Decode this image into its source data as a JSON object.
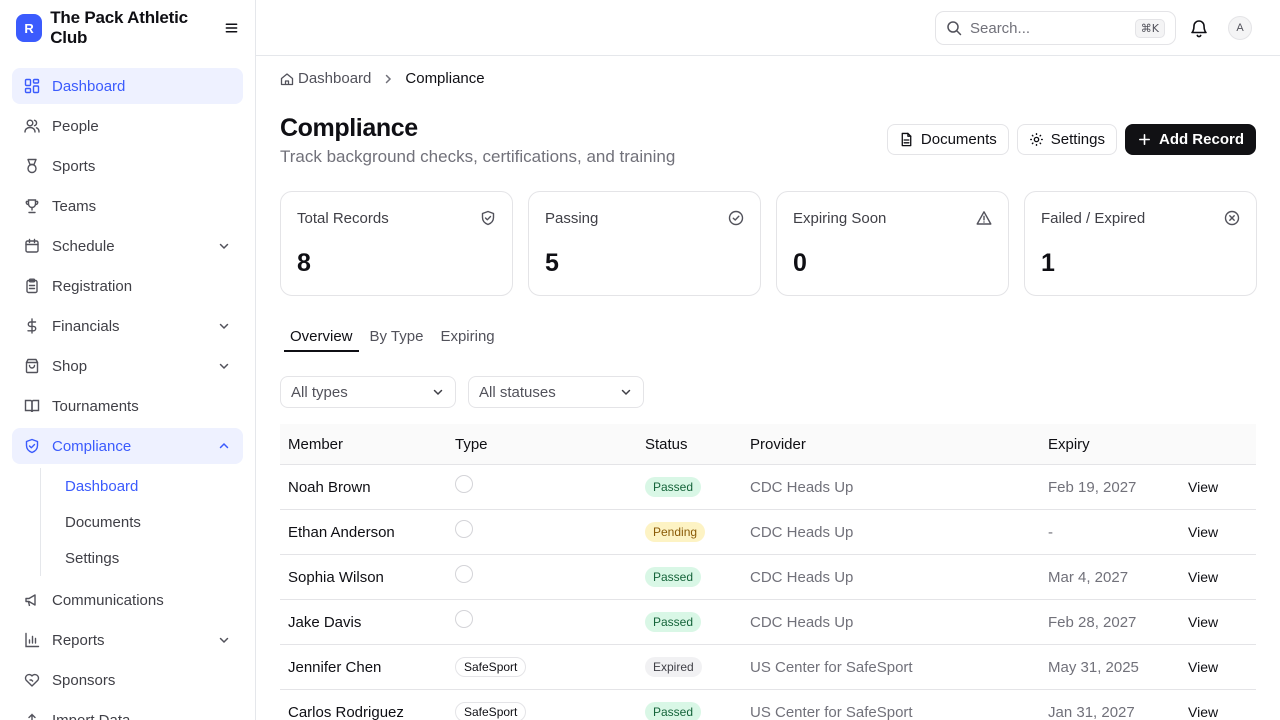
{
  "brand": {
    "logo_letter": "R",
    "name": "The Pack Athletic Club"
  },
  "sidebar": {
    "items": [
      {
        "label": "Dashboard"
      },
      {
        "label": "People"
      },
      {
        "label": "Sports"
      },
      {
        "label": "Teams"
      },
      {
        "label": "Schedule"
      },
      {
        "label": "Registration"
      },
      {
        "label": "Financials"
      },
      {
        "label": "Shop"
      },
      {
        "label": "Tournaments"
      },
      {
        "label": "Compliance"
      },
      {
        "label": "Communications"
      },
      {
        "label": "Reports"
      },
      {
        "label": "Sponsors"
      },
      {
        "label": "Import Data"
      }
    ],
    "compliance_sub": [
      {
        "label": "Dashboard"
      },
      {
        "label": "Documents"
      },
      {
        "label": "Settings"
      }
    ]
  },
  "header": {
    "search_placeholder": "Search...",
    "search_shortcut": "⌘K",
    "avatar_initial": "A"
  },
  "breadcrumb": {
    "home": "Dashboard",
    "current": "Compliance"
  },
  "page": {
    "title": "Compliance",
    "subtitle": "Track background checks, certifications, and training"
  },
  "actions": {
    "documents": "Documents",
    "settings": "Settings",
    "add_record": "Add Record"
  },
  "stats": [
    {
      "label": "Total Records",
      "value": "8",
      "icon": "shield-check-icon"
    },
    {
      "label": "Passing",
      "value": "5",
      "icon": "check-circle-icon"
    },
    {
      "label": "Expiring Soon",
      "value": "0",
      "icon": "warning-triangle-icon"
    },
    {
      "label": "Failed / Expired",
      "value": "1",
      "icon": "x-circle-icon"
    }
  ],
  "tabs": [
    {
      "label": "Overview"
    },
    {
      "label": "By Type"
    },
    {
      "label": "Expiring"
    }
  ],
  "filters": {
    "type": "All types",
    "status": "All statuses"
  },
  "table": {
    "columns": {
      "member": "Member",
      "type": "Type",
      "status": "Status",
      "provider": "Provider",
      "expiry": "Expiry"
    },
    "view_label": "View",
    "rows": [
      {
        "member": "Noah Brown",
        "type": "",
        "status": "Passed",
        "provider": "CDC Heads Up",
        "expiry": "Feb 19, 2027"
      },
      {
        "member": "Ethan Anderson",
        "type": "",
        "status": "Pending",
        "provider": "CDC Heads Up",
        "expiry": "-"
      },
      {
        "member": "Sophia Wilson",
        "type": "",
        "status": "Passed",
        "provider": "CDC Heads Up",
        "expiry": "Mar 4, 2027"
      },
      {
        "member": "Jake Davis",
        "type": "",
        "status": "Passed",
        "provider": "CDC Heads Up",
        "expiry": "Feb 28, 2027"
      },
      {
        "member": "Jennifer Chen",
        "type": "SafeSport",
        "status": "Expired",
        "provider": "US Center for SafeSport",
        "expiry": "May 31, 2025"
      },
      {
        "member": "Carlos Rodriguez",
        "type": "SafeSport",
        "status": "Passed",
        "provider": "US Center for SafeSport",
        "expiry": "Jan 31, 2027"
      }
    ]
  },
  "colors": {
    "accent": "#3b5bfd",
    "primary_button": "#111114",
    "passed_bg": "#d9f7e6",
    "pending_bg": "#fdf3c4",
    "expired_bg": "#f1f1f3"
  }
}
